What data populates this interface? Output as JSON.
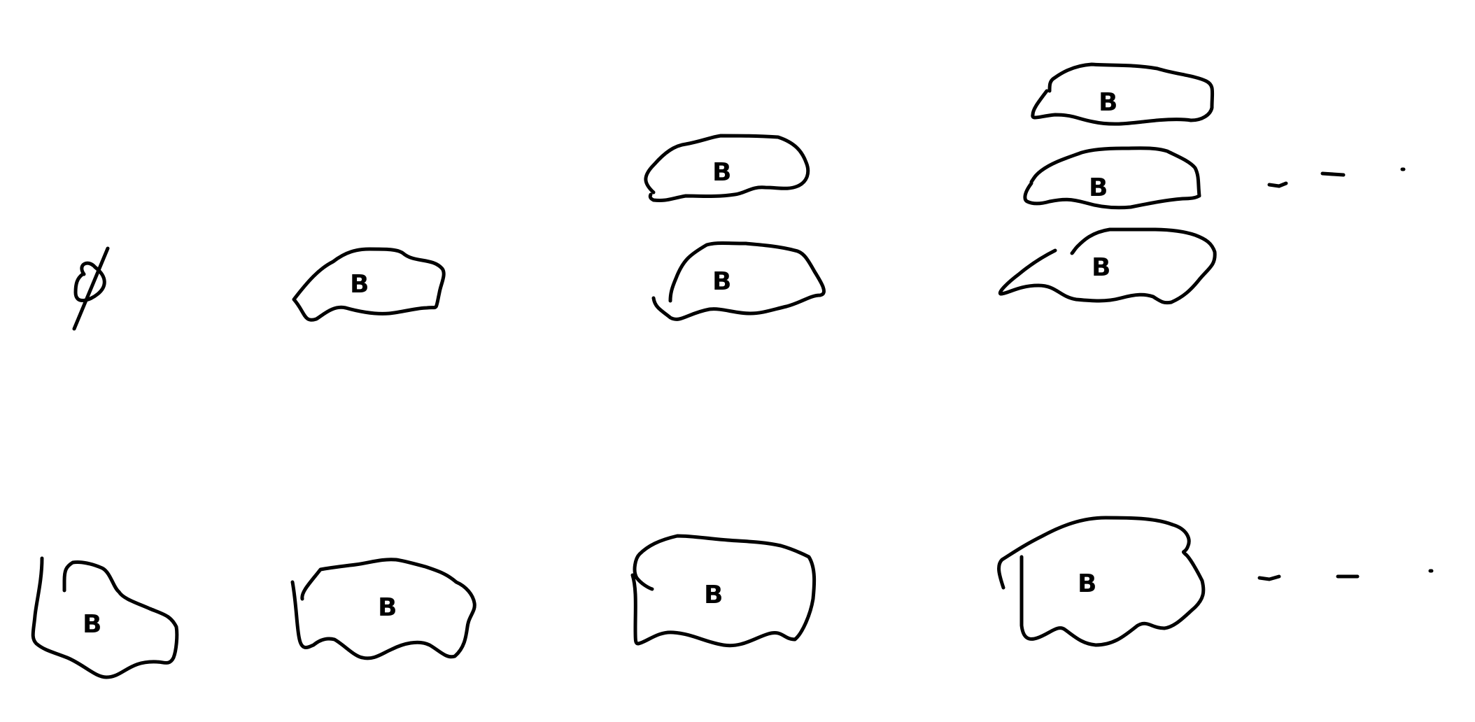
{
  "diagram": {
    "stroke_color": "#000000",
    "background_color": "#ffffff",
    "empty_symbol": "∅",
    "top_row": {
      "columns": [
        {
          "blob_labels": []
        },
        {
          "blob_labels": [
            "B"
          ]
        },
        {
          "blob_labels": [
            "B",
            "B"
          ]
        },
        {
          "blob_labels": [
            "B",
            "B",
            "B"
          ]
        }
      ],
      "continuation": "..."
    },
    "bottom_row": {
      "columns": [
        {
          "blob_labels": [
            "B"
          ]
        },
        {
          "blob_labels": [
            "B"
          ]
        },
        {
          "blob_labels": [
            "B"
          ]
        },
        {
          "blob_labels": [
            "B"
          ]
        }
      ],
      "continuation": "..."
    }
  }
}
